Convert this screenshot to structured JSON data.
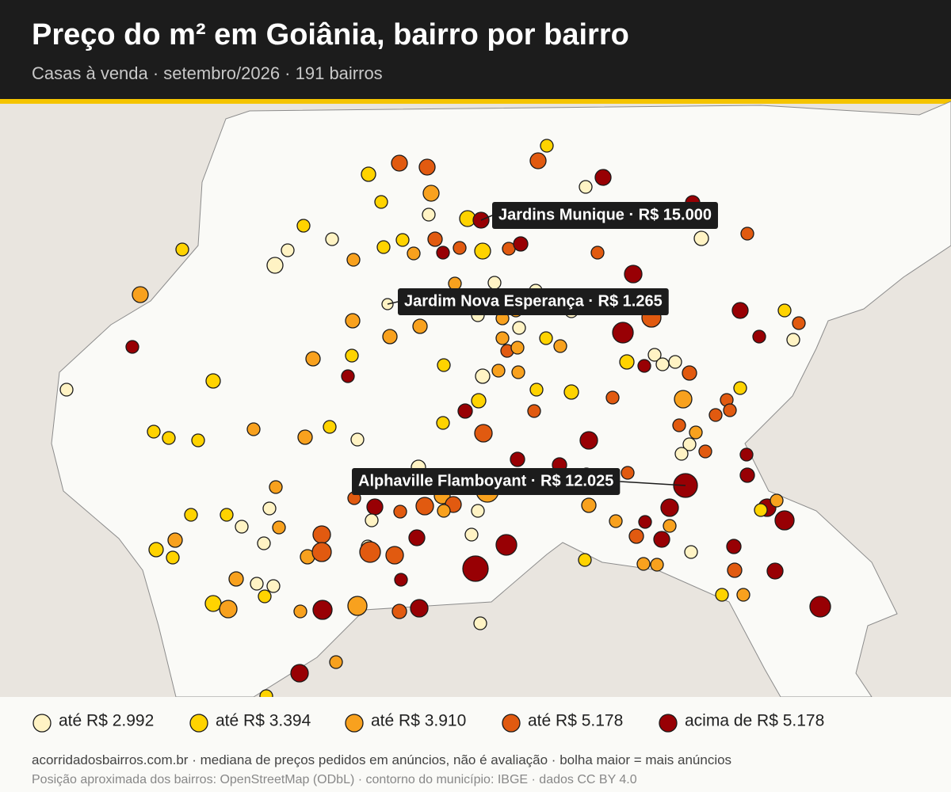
{
  "header": {
    "title": "Preço do m² em Goiânia, bairro por bairro",
    "subtitle": "Casas à venda · setembro/2026 · 191 bairros"
  },
  "map": {
    "callouts": [
      "Jardins Munique · R$ 15.000",
      "Jardim Nova Esperança · R$ 1.265",
      "Alphaville Flamboyant · R$ 12.025"
    ]
  },
  "legend": [
    {
      "label": "até R$ 2.992",
      "color": "#fff3c4"
    },
    {
      "label": "até R$ 3.394",
      "color": "#ffd300"
    },
    {
      "label": "até R$ 3.910",
      "color": "#f8a11e"
    },
    {
      "label": "até R$ 5.178",
      "color": "#e15a10"
    },
    {
      "label": "acima de R$ 5.178",
      "color": "#980004"
    }
  ],
  "footer": {
    "source": "acorridadosbairros.com.br · mediana de preços pedidos em anúncios, não é avaliação · bolha maior = mais anúncios",
    "credits": "Posição aproximada dos bairros: OpenStreetMap (ODbL) · contorno do município: IBGE · dados CC BY 4.0"
  }
}
